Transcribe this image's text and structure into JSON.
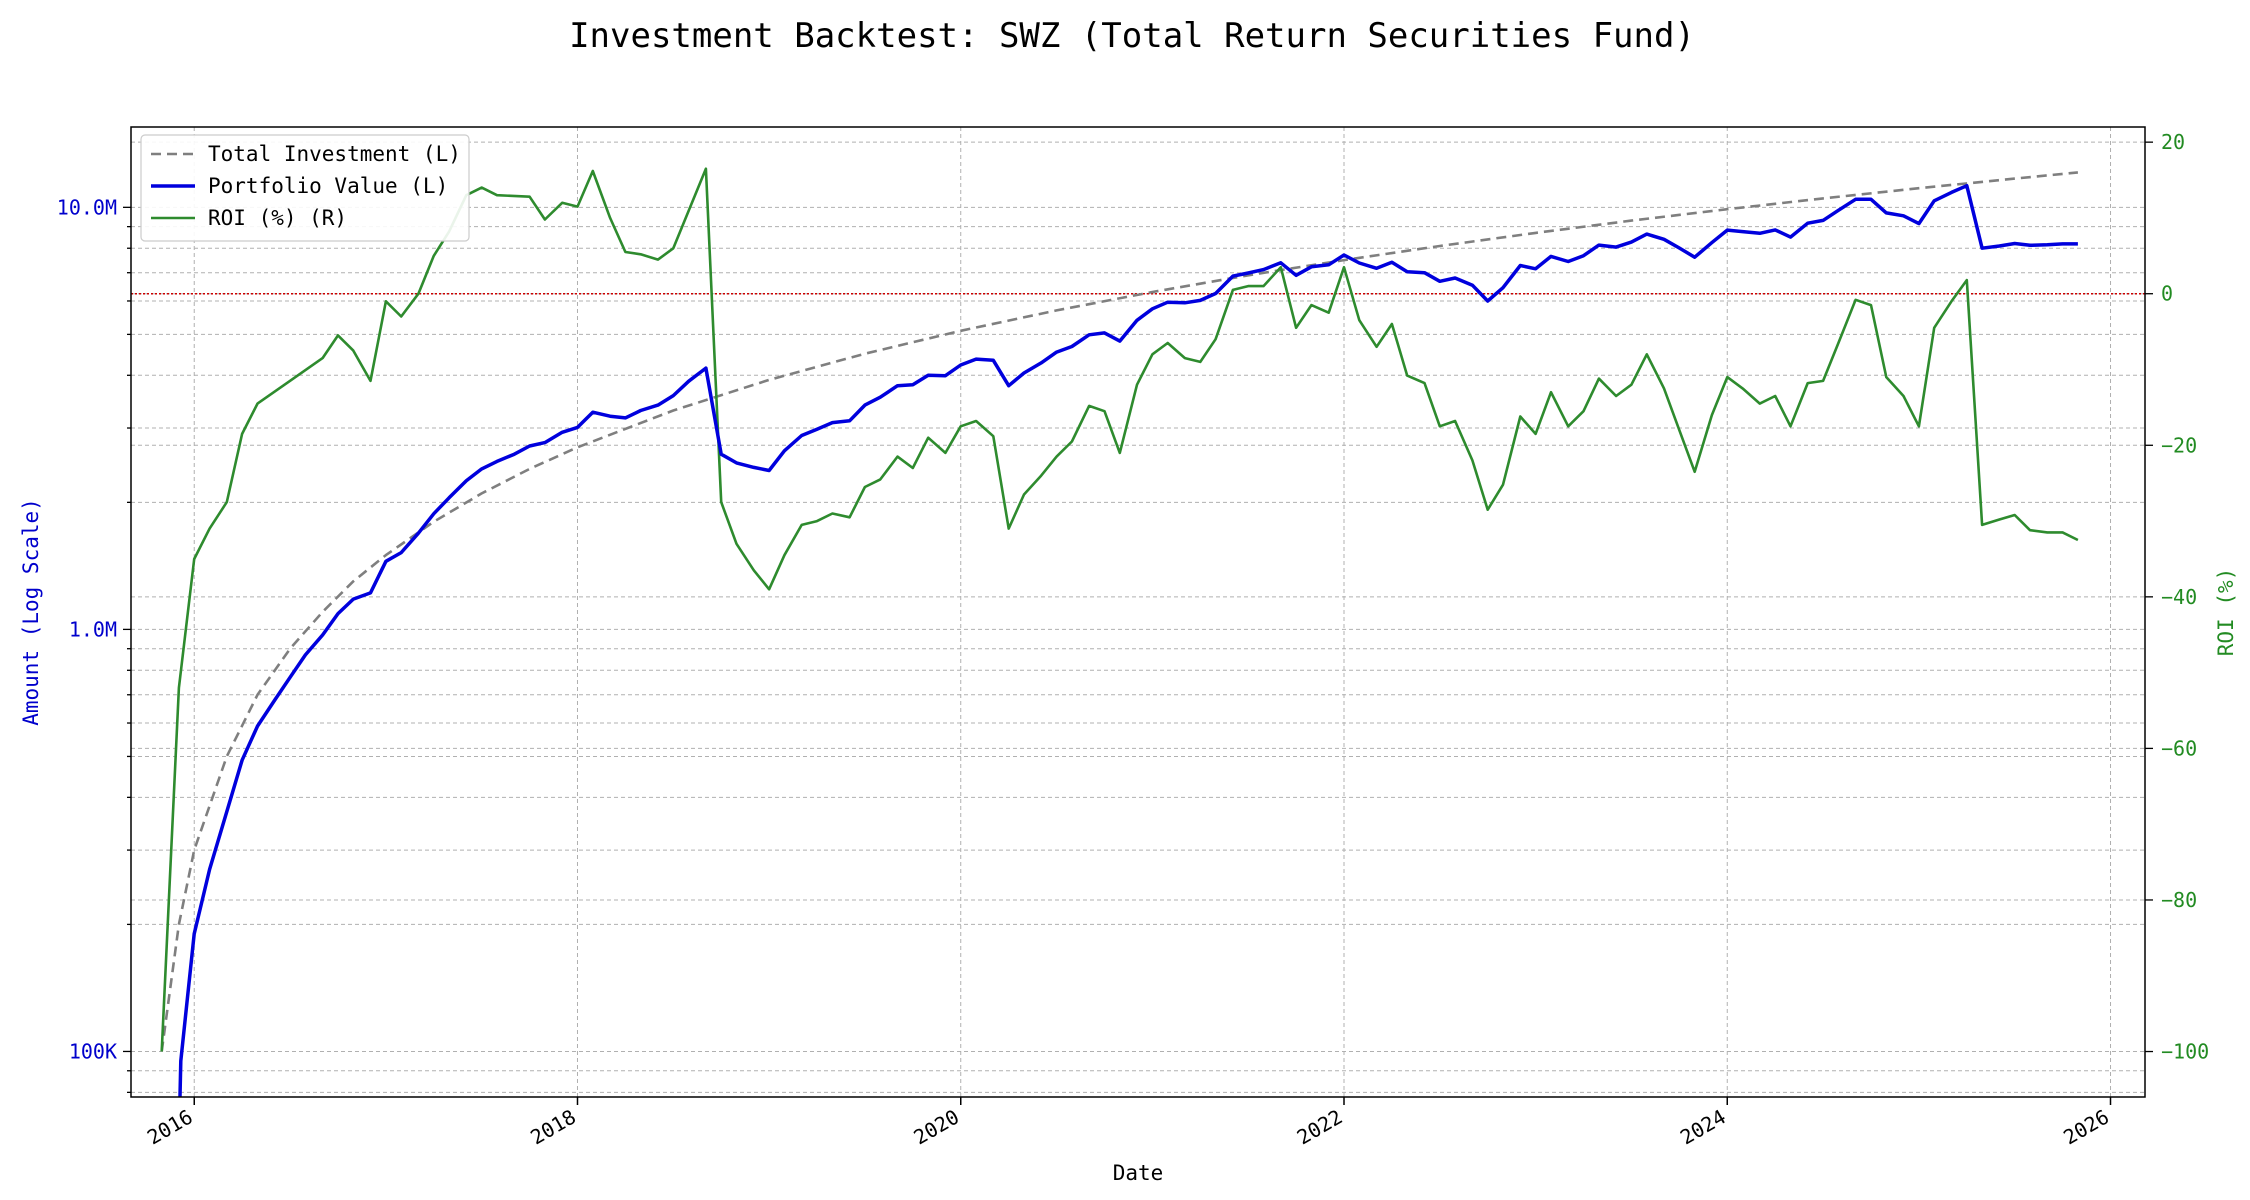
{
  "chart_data": {
    "type": "line",
    "title": "Investment Backtest: SWZ (Total Return Securities Fund)",
    "xlabel": "Date",
    "ylabel_left": "Amount (Log Scale)",
    "ylabel_right": "ROI (%)",
    "left_scale": "log",
    "xlim": [
      2015.67,
      2026.18
    ],
    "ylim_left": [
      78000,
      15500000
    ],
    "ylim_right": [
      -106,
      22
    ],
    "x_ticks": [
      2016,
      2018,
      2020,
      2022,
      2024,
      2026
    ],
    "x_tick_labels": [
      "2016",
      "2018",
      "2020",
      "2022",
      "2024",
      "2026"
    ],
    "left_ticks": [
      100000,
      1000000,
      10000000
    ],
    "left_tick_labels": [
      "100K",
      "1.0M",
      "10.0M"
    ],
    "right_ticks": [
      20,
      0,
      -20,
      -40,
      -60,
      -80,
      -100
    ],
    "right_tick_labels": [
      "20",
      "0",
      "−20",
      "−40",
      "−60",
      "−80",
      "−100"
    ],
    "grid": true,
    "legend_position": "top-left",
    "reference_line": {
      "axis": "right",
      "value": 0,
      "color": "#cc0000"
    },
    "colors": {
      "left_axis": "#0000cc",
      "right_axis": "#228b22",
      "reference": "#cc0000"
    },
    "series": [
      {
        "name": "Total Investment (L)",
        "axis": "left",
        "style": "dashed",
        "color": "#7f7f7f",
        "x": [
          2015.83,
          2015.92,
          2016.0,
          2016.17,
          2016.33,
          2016.5,
          2016.67,
          2016.83,
          2017.0,
          2017.25,
          2017.5,
          2017.75,
          2018.0,
          2018.5,
          2019.0,
          2019.5,
          2020.0,
          2020.5,
          2021.0,
          2021.5,
          2022.0,
          2022.5,
          2023.0,
          2023.5,
          2024.0,
          2024.5,
          2025.0,
          2025.5,
          2025.83
        ],
        "values": [
          100000,
          200000,
          300000,
          500000,
          700000,
          900000,
          1100000,
          1300000,
          1500000,
          1800000,
          2100000,
          2400000,
          2700000,
          3300000,
          3900000,
          4500000,
          5100000,
          5700000,
          6300000,
          6900000,
          7500000,
          8100000,
          8700000,
          9300000,
          9900000,
          10500000,
          11100000,
          11700000,
          12100000
        ]
      },
      {
        "name": "Portfolio Value (L)",
        "axis": "left",
        "style": "solid",
        "color": "#0000dd",
        "x": [
          2015.92,
          2015.93,
          2016.0,
          2016.08,
          2016.17,
          2016.25,
          2016.33,
          2016.42,
          2016.5,
          2016.58,
          2016.67,
          2016.75,
          2016.83,
          2016.92,
          2017.0,
          2017.08,
          2017.17,
          2017.25,
          2017.33,
          2017.42,
          2017.5,
          2017.58,
          2017.67,
          2017.75,
          2017.83,
          2017.92,
          2018.0,
          2018.08,
          2018.17,
          2018.25,
          2018.33,
          2018.42,
          2018.5,
          2018.58,
          2018.67,
          2018.75,
          2018.83,
          2018.92,
          2019.0,
          2019.08,
          2019.17,
          2019.25,
          2019.33,
          2019.42,
          2019.5,
          2019.58,
          2019.67,
          2019.75,
          2019.83,
          2019.92,
          2020.0,
          2020.08,
          2020.17,
          2020.25,
          2020.33,
          2020.42,
          2020.5,
          2020.58,
          2020.67,
          2020.75,
          2020.83,
          2020.92,
          2021.0,
          2021.08,
          2021.17,
          2021.25,
          2021.33,
          2021.42,
          2021.5,
          2021.58,
          2021.67,
          2021.75,
          2021.83,
          2021.92,
          2022.0,
          2022.08,
          2022.17,
          2022.25,
          2022.33,
          2022.42,
          2022.5,
          2022.58,
          2022.67,
          2022.75,
          2022.83,
          2022.92,
          2023.0,
          2023.08,
          2023.17,
          2023.25,
          2023.33,
          2023.42,
          2023.5,
          2023.58,
          2023.67,
          2023.75,
          2023.83,
          2023.92,
          2024.0,
          2024.08,
          2024.17,
          2024.25,
          2024.33,
          2024.42,
          2024.5,
          2024.58,
          2024.67,
          2024.75,
          2024.83,
          2024.92,
          2025.0,
          2025.08,
          2025.17,
          2025.25,
          2025.33,
          2025.42,
          2025.5,
          2025.58,
          2025.67,
          2025.75,
          2025.83
        ],
        "values": [
          60000,
          95000,
          190000,
          270000,
          370000,
          490000,
          590000,
          680000,
          770000,
          870000,
          970000,
          1090000,
          1180000,
          1220000,
          1450000,
          1520000,
          1690000,
          1880000,
          2050000,
          2250000,
          2400000,
          2500000,
          2600000,
          2720000,
          2770000,
          2930000,
          3010000,
          3270000,
          3200000,
          3170000,
          3300000,
          3400000,
          3580000,
          3870000,
          4160000,
          2600000,
          2480000,
          2420000,
          2380000,
          2650000,
          2880000,
          2980000,
          3090000,
          3120000,
          3400000,
          3550000,
          3780000,
          3800000,
          4000000,
          3990000,
          4230000,
          4370000,
          4340000,
          3780000,
          4050000,
          4280000,
          4540000,
          4680000,
          4990000,
          5040000,
          4820000,
          5400000,
          5750000,
          5960000,
          5940000,
          6020000,
          6250000,
          6870000,
          6990000,
          7120000,
          7390000,
          6900000,
          7230000,
          7310000,
          7710000,
          7380000,
          7170000,
          7410000,
          7040000,
          7000000,
          6680000,
          6800000,
          6540000,
          6000000,
          6450000,
          7280000,
          7150000,
          7650000,
          7440000,
          7680000,
          8140000,
          8050000,
          8270000,
          8640000,
          8400000,
          8010000,
          7620000,
          8250000,
          8830000,
          8760000,
          8680000,
          8840000,
          8500000,
          9170000,
          9310000,
          9840000,
          10450000,
          10450000,
          9700000,
          9550000,
          9150000,
          10360000,
          10850000,
          11250000,
          8000000,
          8100000,
          8210000,
          8130000,
          8150000,
          8190000,
          8190000
        ]
      },
      {
        "name": "ROI (%) (R)",
        "axis": "right",
        "style": "solid",
        "color": "#2e8b2e",
        "x": [
          2015.83,
          2015.92,
          2016.0,
          2016.08,
          2016.17,
          2016.25,
          2016.33,
          2016.67,
          2016.75,
          2016.83,
          2016.92,
          2017.0,
          2017.08,
          2017.17,
          2017.25,
          2017.33,
          2017.42,
          2017.5,
          2017.58,
          2017.75,
          2017.83,
          2017.92,
          2018.0,
          2018.08,
          2018.17,
          2018.25,
          2018.33,
          2018.42,
          2018.5,
          2018.67,
          2018.75,
          2018.83,
          2018.92,
          2019.0,
          2019.08,
          2019.17,
          2019.25,
          2019.33,
          2019.42,
          2019.5,
          2019.58,
          2019.67,
          2019.75,
          2019.83,
          2019.92,
          2020.0,
          2020.08,
          2020.17,
          2020.25,
          2020.33,
          2020.42,
          2020.5,
          2020.58,
          2020.67,
          2020.75,
          2020.83,
          2020.92,
          2021.0,
          2021.08,
          2021.17,
          2021.25,
          2021.33,
          2021.42,
          2021.5,
          2021.58,
          2021.67,
          2021.75,
          2021.83,
          2021.92,
          2022.0,
          2022.08,
          2022.17,
          2022.25,
          2022.33,
          2022.42,
          2022.5,
          2022.58,
          2022.67,
          2022.75,
          2022.83,
          2022.92,
          2023.0,
          2023.08,
          2023.17,
          2023.25,
          2023.33,
          2023.42,
          2023.5,
          2023.58,
          2023.67,
          2023.75,
          2023.83,
          2023.92,
          2024.0,
          2024.08,
          2024.17,
          2024.25,
          2024.33,
          2024.42,
          2024.5,
          2024.58,
          2024.67,
          2024.75,
          2024.83,
          2024.92,
          2025.0,
          2025.08,
          2025.17,
          2025.25,
          2025.33,
          2025.42,
          2025.5,
          2025.58,
          2025.67,
          2025.75,
          2025.83
        ],
        "values": [
          -100,
          -52,
          -35,
          -31,
          -27.5,
          -18.5,
          -14.5,
          -8.5,
          -5.5,
          -7.5,
          -11.5,
          -1,
          -3,
          0,
          5,
          8.2,
          13,
          14,
          13,
          12.8,
          9.8,
          12,
          11.5,
          16.2,
          10,
          5.5,
          5.2,
          4.5,
          6,
          16.5,
          -27.5,
          -33,
          -36.5,
          -39,
          -34.5,
          -30.5,
          -30,
          -29,
          -29.5,
          -25.5,
          -24.5,
          -21.5,
          -23,
          -19,
          -21,
          -17.5,
          -16.8,
          -18.8,
          -31,
          -26.5,
          -24,
          -21.5,
          -19.5,
          -14.8,
          -15.5,
          -21,
          -12,
          -8,
          -6.5,
          -8.5,
          -9,
          -6,
          0.5,
          1,
          1,
          3.5,
          -4.5,
          -1.5,
          -2.5,
          3.5,
          -3.5,
          -7,
          -4,
          -10.8,
          -11.8,
          -17.5,
          -16.8,
          -22,
          -28.5,
          -25.2,
          -16.2,
          -18.5,
          -13,
          -17.5,
          -15.5,
          -11.2,
          -13.5,
          -12,
          -8,
          -12.5,
          -18,
          -23.5,
          -16,
          -11,
          -12.5,
          -14.5,
          -13.5,
          -17.5,
          -11.8,
          -11.5,
          -6.5,
          -0.8,
          -1.5,
          -11,
          -13.5,
          -17.5,
          -4.5,
          -1,
          1.8,
          -30.5,
          -29.8,
          -29.2,
          -31.2,
          -31.5,
          -31.5,
          -32.5
        ]
      }
    ]
  }
}
